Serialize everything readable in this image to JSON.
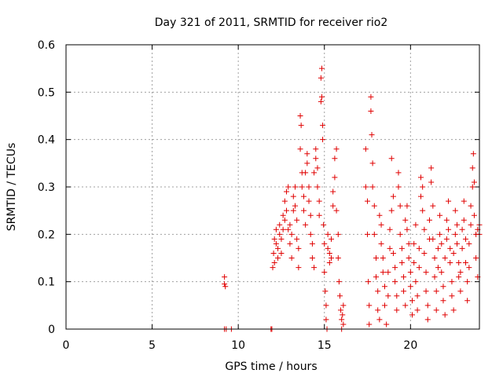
{
  "chart_data": {
    "type": "scatter",
    "title": "Day 321 of 2011, SRMTID for receiver rio2",
    "xlabel": "GPS time / hours",
    "ylabel": "SRMTID / TECUs",
    "xlim": [
      0,
      24
    ],
    "ylim": [
      0,
      0.6
    ],
    "x_ticks": [
      "0",
      "5",
      "10",
      "15",
      "20"
    ],
    "y_ticks": [
      "0",
      "0.1",
      "0.2",
      "0.3",
      "0.4",
      "0.5",
      "0.6"
    ],
    "grid": true,
    "marker": "plus",
    "color": "#e00000",
    "series": [
      {
        "points": [
          [
            9.2,
            0.11
          ],
          [
            9.2,
            0.095
          ],
          [
            9.25,
            0.09
          ],
          [
            9.2,
            0.0
          ],
          [
            9.3,
            0.0
          ],
          [
            9.6,
            0.0
          ],
          [
            11.9,
            0.0
          ],
          [
            11.95,
            0.0
          ],
          [
            12.0,
            0.13
          ],
          [
            12.05,
            0.16
          ],
          [
            12.1,
            0.19
          ],
          [
            12.1,
            0.14
          ],
          [
            12.2,
            0.18
          ],
          [
            12.2,
            0.21
          ],
          [
            12.3,
            0.17
          ],
          [
            12.3,
            0.15
          ],
          [
            12.4,
            0.2
          ],
          [
            12.4,
            0.22
          ],
          [
            12.5,
            0.19
          ],
          [
            12.5,
            0.16
          ],
          [
            12.6,
            0.21
          ],
          [
            12.6,
            0.24
          ],
          [
            12.7,
            0.23
          ],
          [
            12.7,
            0.27
          ],
          [
            12.8,
            0.29
          ],
          [
            12.8,
            0.25
          ],
          [
            12.9,
            0.3
          ],
          [
            12.9,
            0.21
          ],
          [
            13.0,
            0.22
          ],
          [
            13.0,
            0.18
          ],
          [
            13.1,
            0.15
          ],
          [
            13.1,
            0.2
          ],
          [
            13.2,
            0.25
          ],
          [
            13.2,
            0.28
          ],
          [
            13.3,
            0.3
          ],
          [
            13.3,
            0.26
          ],
          [
            13.4,
            0.23
          ],
          [
            13.4,
            0.19
          ],
          [
            13.5,
            0.17
          ],
          [
            13.5,
            0.13
          ],
          [
            13.6,
            0.38
          ],
          [
            13.6,
            0.45
          ],
          [
            13.65,
            0.43
          ],
          [
            13.7,
            0.33
          ],
          [
            13.7,
            0.3
          ],
          [
            13.8,
            0.28
          ],
          [
            13.8,
            0.25
          ],
          [
            13.9,
            0.22
          ],
          [
            13.9,
            0.33
          ],
          [
            14.0,
            0.37
          ],
          [
            14.0,
            0.35
          ],
          [
            14.1,
            0.3
          ],
          [
            14.1,
            0.27
          ],
          [
            14.2,
            0.24
          ],
          [
            14.2,
            0.2
          ],
          [
            14.3,
            0.18
          ],
          [
            14.3,
            0.15
          ],
          [
            14.4,
            0.13
          ],
          [
            14.4,
            0.33
          ],
          [
            14.5,
            0.36
          ],
          [
            14.5,
            0.38
          ],
          [
            14.6,
            0.34
          ],
          [
            14.6,
            0.3
          ],
          [
            14.7,
            0.27
          ],
          [
            14.7,
            0.24
          ],
          [
            14.8,
            0.48
          ],
          [
            14.8,
            0.53
          ],
          [
            14.85,
            0.55
          ],
          [
            14.85,
            0.49
          ],
          [
            14.9,
            0.43
          ],
          [
            14.9,
            0.4
          ],
          [
            14.95,
            0.22
          ],
          [
            15.0,
            0.18
          ],
          [
            15.0,
            0.12
          ],
          [
            15.05,
            0.08
          ],
          [
            15.1,
            0.05
          ],
          [
            15.1,
            0.02
          ],
          [
            15.15,
            0.0
          ],
          [
            15.2,
            0.2
          ],
          [
            15.2,
            0.17
          ],
          [
            15.3,
            0.14
          ],
          [
            15.3,
            0.16
          ],
          [
            15.4,
            0.19
          ],
          [
            15.4,
            0.15
          ],
          [
            15.5,
            0.26
          ],
          [
            15.5,
            0.29
          ],
          [
            15.6,
            0.32
          ],
          [
            15.6,
            0.36
          ],
          [
            15.7,
            0.38
          ],
          [
            15.7,
            0.25
          ],
          [
            15.8,
            0.2
          ],
          [
            15.8,
            0.15
          ],
          [
            15.85,
            0.1
          ],
          [
            15.9,
            0.07
          ],
          [
            15.95,
            0.04
          ],
          [
            16.0,
            0.02
          ],
          [
            16.0,
            0.0
          ],
          [
            16.05,
            0.03
          ],
          [
            16.1,
            0.05
          ],
          [
            16.1,
            0.01
          ],
          [
            17.4,
            0.38
          ],
          [
            17.4,
            0.3
          ],
          [
            17.5,
            0.27
          ],
          [
            17.5,
            0.2
          ],
          [
            17.55,
            0.1
          ],
          [
            17.6,
            0.05
          ],
          [
            17.6,
            0.01
          ],
          [
            17.7,
            0.46
          ],
          [
            17.7,
            0.49
          ],
          [
            17.75,
            0.41
          ],
          [
            17.8,
            0.35
          ],
          [
            17.8,
            0.3
          ],
          [
            17.9,
            0.26
          ],
          [
            17.9,
            0.2
          ],
          [
            18.0,
            0.15
          ],
          [
            18.0,
            0.11
          ],
          [
            18.1,
            0.08
          ],
          [
            18.1,
            0.04
          ],
          [
            18.2,
            0.02
          ],
          [
            18.2,
            0.24
          ],
          [
            18.3,
            0.22
          ],
          [
            18.3,
            0.18
          ],
          [
            18.4,
            0.15
          ],
          [
            18.4,
            0.12
          ],
          [
            18.5,
            0.09
          ],
          [
            18.5,
            0.05
          ],
          [
            18.6,
            0.01
          ],
          [
            18.7,
            0.07
          ],
          [
            18.7,
            0.12
          ],
          [
            18.8,
            0.17
          ],
          [
            18.8,
            0.21
          ],
          [
            18.9,
            0.25
          ],
          [
            18.9,
            0.36
          ],
          [
            19.0,
            0.28
          ],
          [
            19.0,
            0.16
          ],
          [
            19.1,
            0.13
          ],
          [
            19.1,
            0.1
          ],
          [
            19.2,
            0.07
          ],
          [
            19.2,
            0.04
          ],
          [
            19.3,
            0.33
          ],
          [
            19.3,
            0.3
          ],
          [
            19.4,
            0.26
          ],
          [
            19.4,
            0.2
          ],
          [
            19.5,
            0.17
          ],
          [
            19.5,
            0.14
          ],
          [
            19.6,
            0.11
          ],
          [
            19.6,
            0.08
          ],
          [
            19.7,
            0.05
          ],
          [
            19.7,
            0.23
          ],
          [
            19.8,
            0.26
          ],
          [
            19.8,
            0.21
          ],
          [
            19.9,
            0.18
          ],
          [
            19.9,
            0.15
          ],
          [
            20.0,
            0.12
          ],
          [
            20.0,
            0.09
          ],
          [
            20.1,
            0.06
          ],
          [
            20.1,
            0.03
          ],
          [
            20.2,
            0.14
          ],
          [
            20.2,
            0.18
          ],
          [
            20.3,
            0.22
          ],
          [
            20.3,
            0.1
          ],
          [
            20.4,
            0.07
          ],
          [
            20.4,
            0.04
          ],
          [
            20.5,
            0.13
          ],
          [
            20.5,
            0.17
          ],
          [
            20.6,
            0.28
          ],
          [
            20.6,
            0.32
          ],
          [
            20.7,
            0.3
          ],
          [
            20.7,
            0.25
          ],
          [
            20.8,
            0.21
          ],
          [
            20.8,
            0.16
          ],
          [
            20.9,
            0.12
          ],
          [
            20.9,
            0.08
          ],
          [
            21.0,
            0.05
          ],
          [
            21.0,
            0.02
          ],
          [
            21.1,
            0.19
          ],
          [
            21.1,
            0.23
          ],
          [
            21.2,
            0.34
          ],
          [
            21.2,
            0.31
          ],
          [
            21.3,
            0.26
          ],
          [
            21.3,
            0.19
          ],
          [
            21.4,
            0.15
          ],
          [
            21.4,
            0.11
          ],
          [
            21.5,
            0.08
          ],
          [
            21.5,
            0.04
          ],
          [
            21.6,
            0.13
          ],
          [
            21.6,
            0.17
          ],
          [
            21.7,
            0.2
          ],
          [
            21.7,
            0.24
          ],
          [
            21.8,
            0.18
          ],
          [
            21.8,
            0.12
          ],
          [
            21.9,
            0.09
          ],
          [
            21.9,
            0.06
          ],
          [
            22.0,
            0.03
          ],
          [
            22.0,
            0.15
          ],
          [
            22.1,
            0.19
          ],
          [
            22.1,
            0.23
          ],
          [
            22.2,
            0.27
          ],
          [
            22.2,
            0.21
          ],
          [
            22.3,
            0.17
          ],
          [
            22.3,
            0.14
          ],
          [
            22.4,
            0.1
          ],
          [
            22.4,
            0.07
          ],
          [
            22.5,
            0.04
          ],
          [
            22.5,
            0.16
          ],
          [
            22.6,
            0.2
          ],
          [
            22.6,
            0.25
          ],
          [
            22.7,
            0.22
          ],
          [
            22.7,
            0.18
          ],
          [
            22.8,
            0.14
          ],
          [
            22.8,
            0.11
          ],
          [
            22.9,
            0.08
          ],
          [
            22.9,
            0.12
          ],
          [
            23.0,
            0.17
          ],
          [
            23.0,
            0.21
          ],
          [
            23.1,
            0.27
          ],
          [
            23.1,
            0.23
          ],
          [
            23.2,
            0.19
          ],
          [
            23.2,
            0.14
          ],
          [
            23.3,
            0.1
          ],
          [
            23.3,
            0.06
          ],
          [
            23.4,
            0.13
          ],
          [
            23.4,
            0.18
          ],
          [
            23.5,
            0.22
          ],
          [
            23.5,
            0.26
          ],
          [
            23.6,
            0.3
          ],
          [
            23.6,
            0.34
          ],
          [
            23.65,
            0.37
          ],
          [
            23.7,
            0.31
          ],
          [
            23.7,
            0.24
          ],
          [
            23.8,
            0.2
          ],
          [
            23.8,
            0.15
          ],
          [
            23.9,
            0.11
          ],
          [
            23.9,
            0.21
          ],
          [
            24.0,
            0.22
          ],
          [
            24.0,
            0.2
          ]
        ]
      }
    ]
  }
}
